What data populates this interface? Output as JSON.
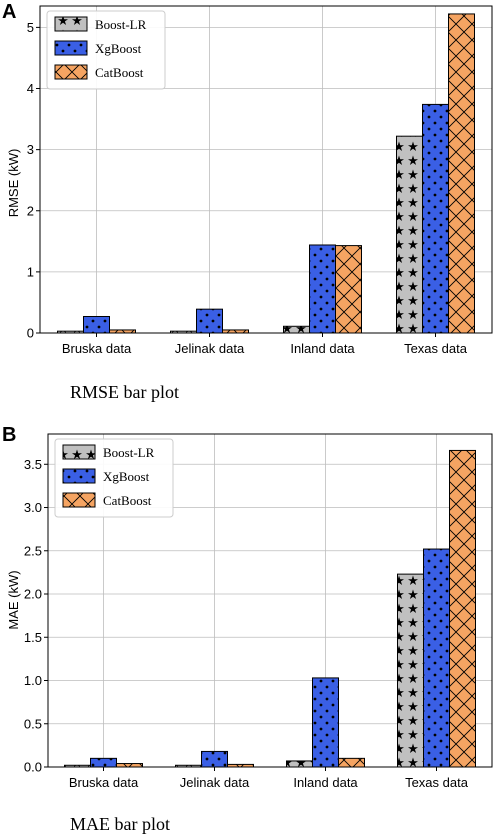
{
  "chart_data": [
    {
      "panel": "A",
      "type": "bar",
      "caption": "RMSE bar plot",
      "ylabel": "RMSE (kW)",
      "xlabel": "",
      "categories": [
        "Bruska data",
        "Jelinak data",
        "Inland data",
        "Texas data"
      ],
      "ylim": [
        0,
        5.35
      ],
      "yticks": [
        0,
        1,
        2,
        3,
        4,
        5
      ],
      "grid": true,
      "legend_position": "top-left",
      "series": [
        {
          "name": "Boost-LR",
          "values": [
            0.03,
            0.03,
            0.11,
            3.22
          ],
          "color": "#c0c0c0",
          "pattern": "star"
        },
        {
          "name": "XgBoost",
          "values": [
            0.27,
            0.39,
            1.44,
            3.74
          ],
          "color": "#3a5fe5",
          "pattern": "dot"
        },
        {
          "name": "CatBoost",
          "values": [
            0.05,
            0.05,
            1.43,
            5.22
          ],
          "color": "#f5a462",
          "pattern": "cross"
        }
      ]
    },
    {
      "panel": "B",
      "type": "bar",
      "caption": "MAE bar plot",
      "ylabel": "MAE (kW)",
      "xlabel": "",
      "categories": [
        "Bruska data",
        "Jelinak data",
        "Inland data",
        "Texas data"
      ],
      "ylim": [
        0,
        3.85
      ],
      "yticks": [
        "0.0",
        "0.5",
        "1.0",
        "1.5",
        "2.0",
        "2.5",
        "3.0",
        "3.5"
      ],
      "grid": true,
      "legend_position": "top-left",
      "series": [
        {
          "name": "Boost-LR",
          "values": [
            0.02,
            0.02,
            0.07,
            2.23
          ],
          "color": "#c0c0c0",
          "pattern": "star"
        },
        {
          "name": "XgBoost",
          "values": [
            0.1,
            0.18,
            1.03,
            2.52
          ],
          "color": "#3a5fe5",
          "pattern": "dot"
        },
        {
          "name": "CatBoost",
          "values": [
            0.04,
            0.03,
            0.1,
            3.66
          ],
          "color": "#f5a462",
          "pattern": "cross"
        }
      ]
    }
  ]
}
